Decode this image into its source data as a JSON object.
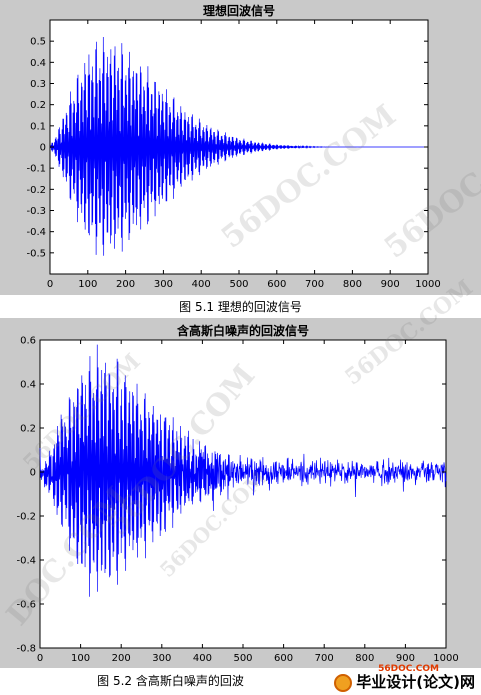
{
  "chart_data": [
    {
      "type": "line",
      "title": "理想回波信号",
      "xlabel": "",
      "ylabel": "",
      "xlim": [
        0,
        1000
      ],
      "ylim": [
        -0.6,
        0.6
      ],
      "xticks": [
        0,
        100,
        200,
        300,
        400,
        500,
        600,
        700,
        800,
        900,
        1000
      ],
      "yticks": [
        -0.5,
        -0.4,
        -0.3,
        -0.2,
        -0.1,
        0,
        0.1,
        0.2,
        0.3,
        0.4,
        0.5
      ],
      "ytick_labels": [
        "-0.5",
        "-0.4",
        "-0.3",
        "-0.2",
        "-0.1",
        "0",
        "0.1",
        "0.2",
        "0.3",
        "0.4",
        "0.5"
      ],
      "grid": false,
      "color": "#0000ff",
      "envelope": {
        "x": [
          0,
          20,
          60,
          100,
          130,
          150,
          180,
          220,
          260,
          300,
          350,
          400,
          450,
          500,
          550,
          600,
          650,
          700,
          750,
          1000
        ],
        "amplitude": [
          0.0,
          0.08,
          0.3,
          0.48,
          0.53,
          0.54,
          0.52,
          0.45,
          0.38,
          0.3,
          0.2,
          0.13,
          0.08,
          0.045,
          0.025,
          0.012,
          0.006,
          0.002,
          0.0,
          0.0
        ]
      }
    },
    {
      "type": "line",
      "title": "含高斯白噪声的回波信号",
      "xlabel": "",
      "ylabel": "",
      "xlim": [
        0,
        1000
      ],
      "ylim": [
        -0.8,
        0.6
      ],
      "xticks": [
        0,
        100,
        200,
        300,
        400,
        500,
        600,
        700,
        800,
        900,
        1000
      ],
      "yticks": [
        -0.8,
        -0.6,
        -0.4,
        -0.2,
        0,
        0.2,
        0.4,
        0.6
      ],
      "ytick_labels": [
        "-0.8",
        "-0.6",
        "-0.4",
        "-0.2",
        "0",
        "0.2",
        "0.4",
        "0.6"
      ],
      "grid": false,
      "color": "#0000ff",
      "noise_amplitude": 0.04,
      "envelope": {
        "x": [
          0,
          20,
          60,
          100,
          130,
          150,
          180,
          220,
          260,
          300,
          350,
          400,
          450,
          500,
          550,
          600,
          650,
          700,
          750,
          1000
        ],
        "amplitude": [
          0.0,
          0.08,
          0.3,
          0.5,
          0.56,
          0.57,
          0.54,
          0.46,
          0.38,
          0.3,
          0.2,
          0.13,
          0.08,
          0.045,
          0.025,
          0.012,
          0.006,
          0.002,
          0.0,
          0.0
        ]
      }
    }
  ],
  "captions": {
    "fig1": "图 5.1   理想的回波信号",
    "fig2": "图 5.2   含高斯白噪声的回波"
  },
  "logo": {
    "text": "毕业设计(论文)网",
    "url": "56DOC.COM"
  },
  "watermarks": [
    "56DOC.COM",
    "56DOC.C",
    "56DOC.COM",
    "56DOC.COM",
    "56DOC.COM",
    "DOC.COM",
    "56DOC.COM"
  ]
}
